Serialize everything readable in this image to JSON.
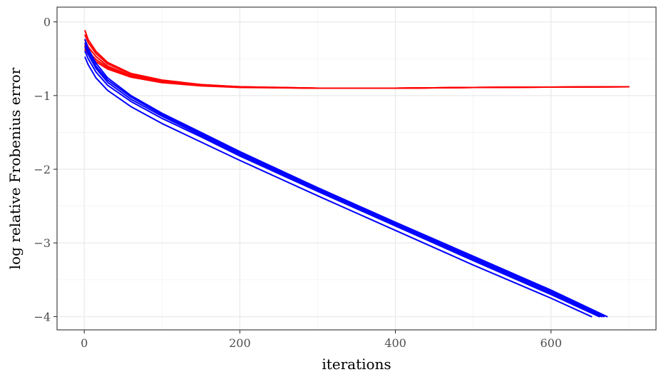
{
  "chart_data": {
    "type": "line",
    "title": "",
    "xlabel": "iterations",
    "ylabel": "log relative Frobenius error",
    "xlim": [
      -35,
      735
    ],
    "ylim": [
      -4.18,
      0.2
    ],
    "x_ticks": [
      0,
      200,
      400,
      600
    ],
    "x_tick_labels": [
      "0",
      "200",
      "400",
      "600"
    ],
    "y_ticks": [
      0,
      -1,
      -2,
      -3,
      -4
    ],
    "y_tick_labels": [
      "0",
      "−1",
      "−2",
      "−3",
      "−4"
    ],
    "grid": true,
    "legend": "none",
    "colors": {
      "group_a": "#ff0000",
      "group_b": "#0000ff"
    },
    "series": [
      {
        "color": "#ff0000",
        "x": [
          1,
          5,
          15,
          30,
          60,
          100,
          150,
          200,
          300,
          400,
          500,
          600,
          700
        ],
        "y": [
          -0.12,
          -0.24,
          -0.4,
          -0.55,
          -0.7,
          -0.79,
          -0.85,
          -0.88,
          -0.9,
          -0.9,
          -0.89,
          -0.885,
          -0.88
        ]
      },
      {
        "color": "#ff0000",
        "x": [
          1,
          5,
          15,
          30,
          60,
          100,
          150,
          200,
          300,
          400,
          500,
          600,
          700
        ],
        "y": [
          -0.18,
          -0.28,
          -0.43,
          -0.57,
          -0.71,
          -0.8,
          -0.855,
          -0.88,
          -0.9,
          -0.9,
          -0.89,
          -0.885,
          -0.88
        ]
      },
      {
        "color": "#ff0000",
        "x": [
          1,
          5,
          15,
          30,
          60,
          100,
          150,
          200,
          300,
          400,
          500,
          600,
          700
        ],
        "y": [
          -0.25,
          -0.34,
          -0.47,
          -0.6,
          -0.73,
          -0.81,
          -0.86,
          -0.885,
          -0.9,
          -0.9,
          -0.89,
          -0.885,
          -0.88
        ]
      },
      {
        "color": "#ff0000",
        "x": [
          1,
          5,
          15,
          30,
          60,
          100,
          150,
          200,
          300,
          400,
          500,
          600,
          700
        ],
        "y": [
          -0.32,
          -0.4,
          -0.51,
          -0.62,
          -0.74,
          -0.82,
          -0.865,
          -0.887,
          -0.9,
          -0.9,
          -0.89,
          -0.885,
          -0.88
        ]
      },
      {
        "color": "#ff0000",
        "x": [
          1,
          5,
          15,
          30,
          60,
          100,
          150,
          200,
          300,
          400,
          500,
          600,
          700
        ],
        "y": [
          -0.37,
          -0.44,
          -0.54,
          -0.64,
          -0.75,
          -0.825,
          -0.868,
          -0.89,
          -0.9,
          -0.9,
          -0.89,
          -0.885,
          -0.88
        ]
      },
      {
        "color": "#0000ff",
        "x": [
          1,
          5,
          15,
          30,
          60,
          100,
          150,
          200,
          300,
          400,
          500,
          600,
          672
        ],
        "y": [
          -0.24,
          -0.36,
          -0.56,
          -0.76,
          -1.0,
          -1.24,
          -1.5,
          -1.76,
          -2.25,
          -2.72,
          -3.18,
          -3.64,
          -4.0
        ]
      },
      {
        "color": "#0000ff",
        "x": [
          1,
          5,
          15,
          30,
          60,
          100,
          150,
          200,
          300,
          400,
          500,
          600,
          668
        ],
        "y": [
          -0.29,
          -0.4,
          -0.6,
          -0.79,
          -1.02,
          -1.26,
          -1.52,
          -1.78,
          -2.27,
          -2.74,
          -3.2,
          -3.66,
          -4.0
        ]
      },
      {
        "color": "#0000ff",
        "x": [
          1,
          5,
          15,
          30,
          60,
          100,
          150,
          200,
          300,
          400,
          500,
          600,
          665
        ],
        "y": [
          -0.34,
          -0.44,
          -0.63,
          -0.82,
          -1.05,
          -1.28,
          -1.54,
          -1.8,
          -2.28,
          -2.75,
          -3.22,
          -3.68,
          -4.0
        ]
      },
      {
        "color": "#0000ff",
        "x": [
          1,
          5,
          15,
          30,
          60,
          100,
          150,
          200,
          300,
          400,
          500,
          600,
          662
        ],
        "y": [
          -0.4,
          -0.5,
          -0.68,
          -0.86,
          -1.08,
          -1.31,
          -1.56,
          -1.82,
          -2.3,
          -2.77,
          -3.24,
          -3.7,
          -4.0
        ]
      },
      {
        "color": "#0000ff",
        "x": [
          1,
          5,
          15,
          30,
          60,
          100,
          150,
          200,
          300,
          400,
          500,
          600,
          652
        ],
        "y": [
          -0.48,
          -0.58,
          -0.76,
          -0.93,
          -1.15,
          -1.38,
          -1.63,
          -1.88,
          -2.36,
          -2.83,
          -3.3,
          -3.75,
          -4.0
        ]
      }
    ]
  }
}
